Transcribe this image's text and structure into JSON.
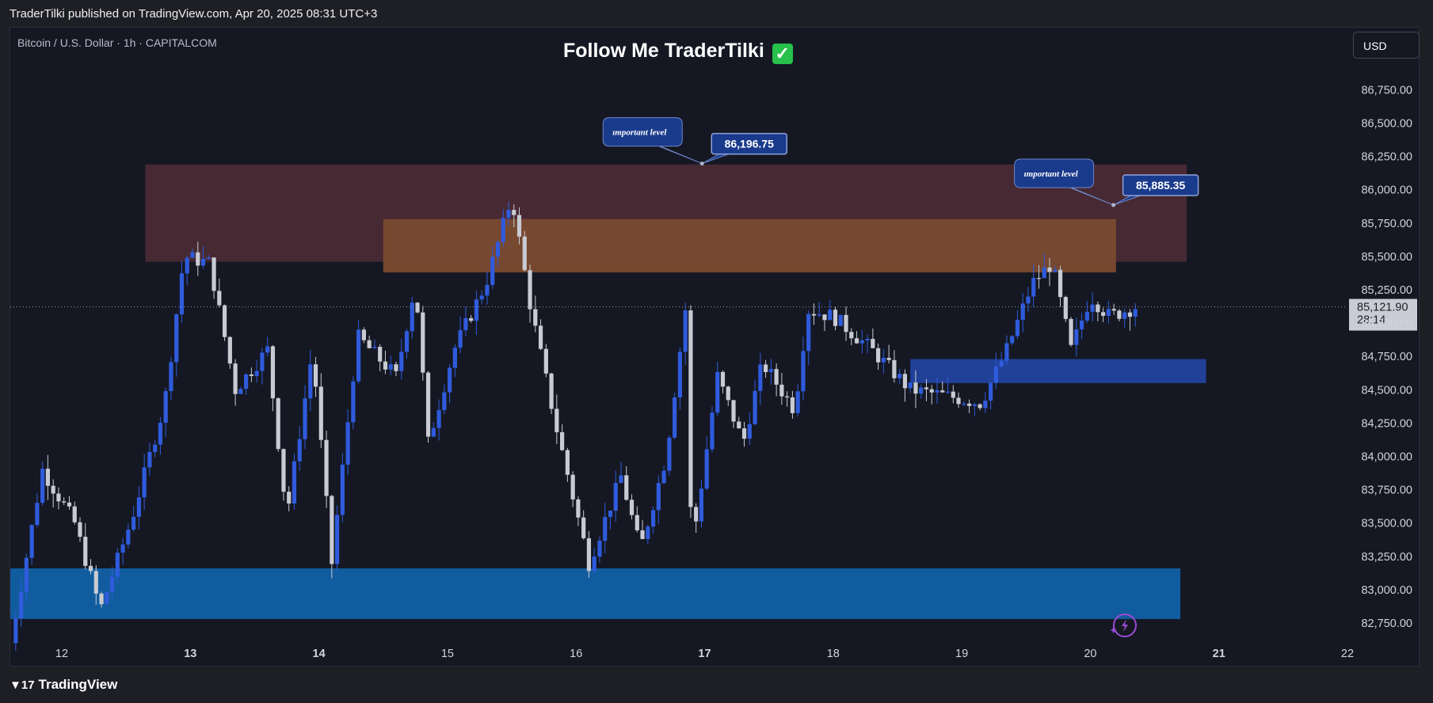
{
  "header": {
    "publisher_line": "TraderTilki published on TradingView.com, Apr 20, 2025 08:31 UTC+3",
    "symbol_line": "Bitcoin / U.S. Dollar · 1h · CAPITALCOM",
    "headline": "Follow Me TraderTilki",
    "headline_icon": "check-mark-icon",
    "currency_button": "USD"
  },
  "footer": {
    "brand": "TradingView",
    "brand_icon": "tradingview-logo-icon"
  },
  "colors": {
    "background": "#151823",
    "bull_candle": "#2f5bdc",
    "bear_candle": "#c8cbd2",
    "resistance_zone": "#4a2a35",
    "inner_resistance_zone": "#7a4a30",
    "support_zone": "#1160a5",
    "small_support_zone": "#2243a0",
    "callout": "#1a3a8c"
  },
  "chart_data": {
    "type": "candlestick",
    "title": "",
    "xlabel": "",
    "ylabel": "",
    "x_ticks": [
      "12",
      "13",
      "14",
      "15",
      "16",
      "17",
      "18",
      "19",
      "20",
      "21",
      "22"
    ],
    "x_ticks_bold": [
      "13",
      "14",
      "17",
      "21"
    ],
    "x_domain_days": [
      11.6,
      22.0
    ],
    "y_ticks": [
      86750,
      86500,
      86250,
      86000,
      85750,
      85500,
      85250,
      85000,
      84750,
      84500,
      84250,
      84000,
      83750,
      83500,
      83250,
      83000,
      82750
    ],
    "y_tick_labels": [
      "86,750.00",
      "86,500.00",
      "86,250.00",
      "86,000.00",
      "85,750.00",
      "85,500.00",
      "85,250.00",
      "85,000.00",
      "84,750.00",
      "84,500.00",
      "84,250.00",
      "84,000.00",
      "83,750.00",
      "83,500.00",
      "83,250.00",
      "83,000.00",
      "82,750.00"
    ],
    "ylim": [
      82600,
      86900
    ],
    "grid": false,
    "current_price": {
      "label": "85,121.90",
      "value": 85121.9,
      "countdown": "28:14"
    },
    "price_series_key_points": [
      {
        "day": 11.6,
        "price": 82600
      },
      {
        "day": 11.85,
        "price": 83900
      },
      {
        "day": 12.1,
        "price": 83500
      },
      {
        "day": 12.3,
        "price": 82850
      },
      {
        "day": 12.55,
        "price": 83550
      },
      {
        "day": 12.8,
        "price": 84400
      },
      {
        "day": 12.95,
        "price": 85500
      },
      {
        "day": 13.15,
        "price": 85450
      },
      {
        "day": 13.35,
        "price": 84500
      },
      {
        "day": 13.6,
        "price": 84800
      },
      {
        "day": 13.75,
        "price": 83550
      },
      {
        "day": 13.95,
        "price": 84800
      },
      {
        "day": 14.1,
        "price": 83200
      },
      {
        "day": 14.3,
        "price": 84900
      },
      {
        "day": 14.6,
        "price": 84600
      },
      {
        "day": 14.75,
        "price": 85300
      },
      {
        "day": 14.85,
        "price": 84100
      },
      {
        "day": 15.05,
        "price": 84800
      },
      {
        "day": 15.3,
        "price": 85300
      },
      {
        "day": 15.5,
        "price": 85950
      },
      {
        "day": 15.65,
        "price": 85100
      },
      {
        "day": 15.85,
        "price": 84200
      },
      {
        "day": 16.1,
        "price": 83200
      },
      {
        "day": 16.35,
        "price": 83850
      },
      {
        "day": 16.5,
        "price": 83300
      },
      {
        "day": 16.7,
        "price": 84000
      },
      {
        "day": 16.85,
        "price": 85100
      },
      {
        "day": 16.9,
        "price": 83300
      },
      {
        "day": 17.1,
        "price": 84600
      },
      {
        "day": 17.3,
        "price": 84100
      },
      {
        "day": 17.45,
        "price": 84700
      },
      {
        "day": 17.7,
        "price": 84350
      },
      {
        "day": 17.8,
        "price": 85100
      },
      {
        "day": 18.0,
        "price": 85050
      },
      {
        "day": 18.3,
        "price": 84800
      },
      {
        "day": 18.6,
        "price": 84500
      },
      {
        "day": 18.9,
        "price": 84450
      },
      {
        "day": 19.15,
        "price": 84400
      },
      {
        "day": 19.35,
        "price": 84800
      },
      {
        "day": 19.55,
        "price": 85300
      },
      {
        "day": 19.7,
        "price": 85450
      },
      {
        "day": 19.85,
        "price": 84800
      },
      {
        "day": 20.0,
        "price": 85200
      },
      {
        "day": 20.15,
        "price": 85050
      },
      {
        "day": 20.35,
        "price": 85121.9
      }
    ],
    "zones": [
      {
        "name": "upper-resistance-zone",
        "day_from": 12.65,
        "day_to": 20.75,
        "price_from": 85460,
        "price_to": 86190,
        "color": "#4a2a35"
      },
      {
        "name": "inner-resistance-zone",
        "day_from": 14.5,
        "day_to": 20.2,
        "price_from": 85380,
        "price_to": 85780,
        "color": "#7a4a30"
      },
      {
        "name": "support-zone",
        "day_from": 11.6,
        "day_to": 20.7,
        "price_from": 82780,
        "price_to": 83160,
        "color": "#1160a5"
      },
      {
        "name": "small-support-zone",
        "day_from": 18.6,
        "day_to": 20.9,
        "price_from": 84550,
        "price_to": 84730,
        "color": "#2243a0"
      }
    ],
    "annotations": [
      {
        "note": "ımportant level",
        "level": "86,196.75",
        "anchor_day": 16.98,
        "anchor_price": 86196.75
      },
      {
        "note": "ımportant level",
        "level": "85,885.35",
        "anchor_day": 20.18,
        "anchor_price": 85885.35
      }
    ]
  }
}
